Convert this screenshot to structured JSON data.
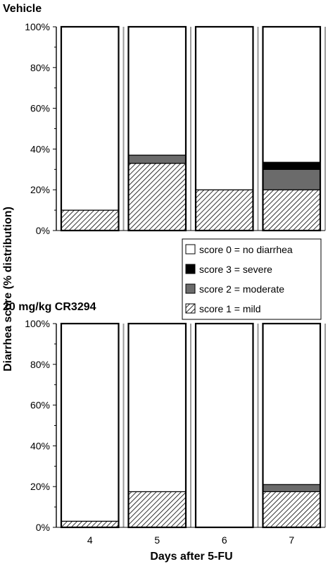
{
  "chart_data": {
    "type": "bar",
    "stacked": true,
    "normalized": true,
    "ylabel": "Diarrhea score (% distribution)",
    "xlabel": "Days after 5-FU",
    "categories": [
      "4",
      "5",
      "6",
      "7"
    ],
    "yticks": [
      "0%",
      "20%",
      "40%",
      "60%",
      "80%",
      "100%"
    ],
    "ylim": [
      0,
      100
    ],
    "legend": {
      "placement": "between-panels-right",
      "entries": [
        {
          "key": "s0",
          "label": "score 0 = no diarrhea"
        },
        {
          "key": "s3",
          "label": "score 3 = severe"
        },
        {
          "key": "s2",
          "label": "score 2 = moderate"
        },
        {
          "key": "s1",
          "label": "score 1 = mild"
        }
      ]
    },
    "series_styles": {
      "s0": {
        "fill": "#ffffff"
      },
      "s1": {
        "fill": "hatch"
      },
      "s2": {
        "fill": "#6b6b6b"
      },
      "s3": {
        "fill": "#000000"
      }
    },
    "panels": [
      {
        "title": "Vehicle",
        "series": [
          {
            "key": "s1",
            "values": [
              10,
              33,
              20,
              20
            ]
          },
          {
            "key": "s2",
            "values": [
              0,
              4,
              0,
              10
            ]
          },
          {
            "key": "s3",
            "values": [
              0,
              0,
              0,
              3.5
            ]
          },
          {
            "key": "s0",
            "values": [
              90,
              63,
              80,
              66.5
            ]
          }
        ]
      },
      {
        "title": "20 mg/kg CR3294",
        "series": [
          {
            "key": "s1",
            "values": [
              3,
              17.5,
              0,
              17.5
            ]
          },
          {
            "key": "s2",
            "values": [
              0,
              0,
              0,
              3.5
            ]
          },
          {
            "key": "s3",
            "values": [
              0,
              0,
              0,
              0
            ]
          },
          {
            "key": "s0",
            "values": [
              97,
              82.5,
              100,
              79
            ]
          }
        ]
      }
    ]
  }
}
